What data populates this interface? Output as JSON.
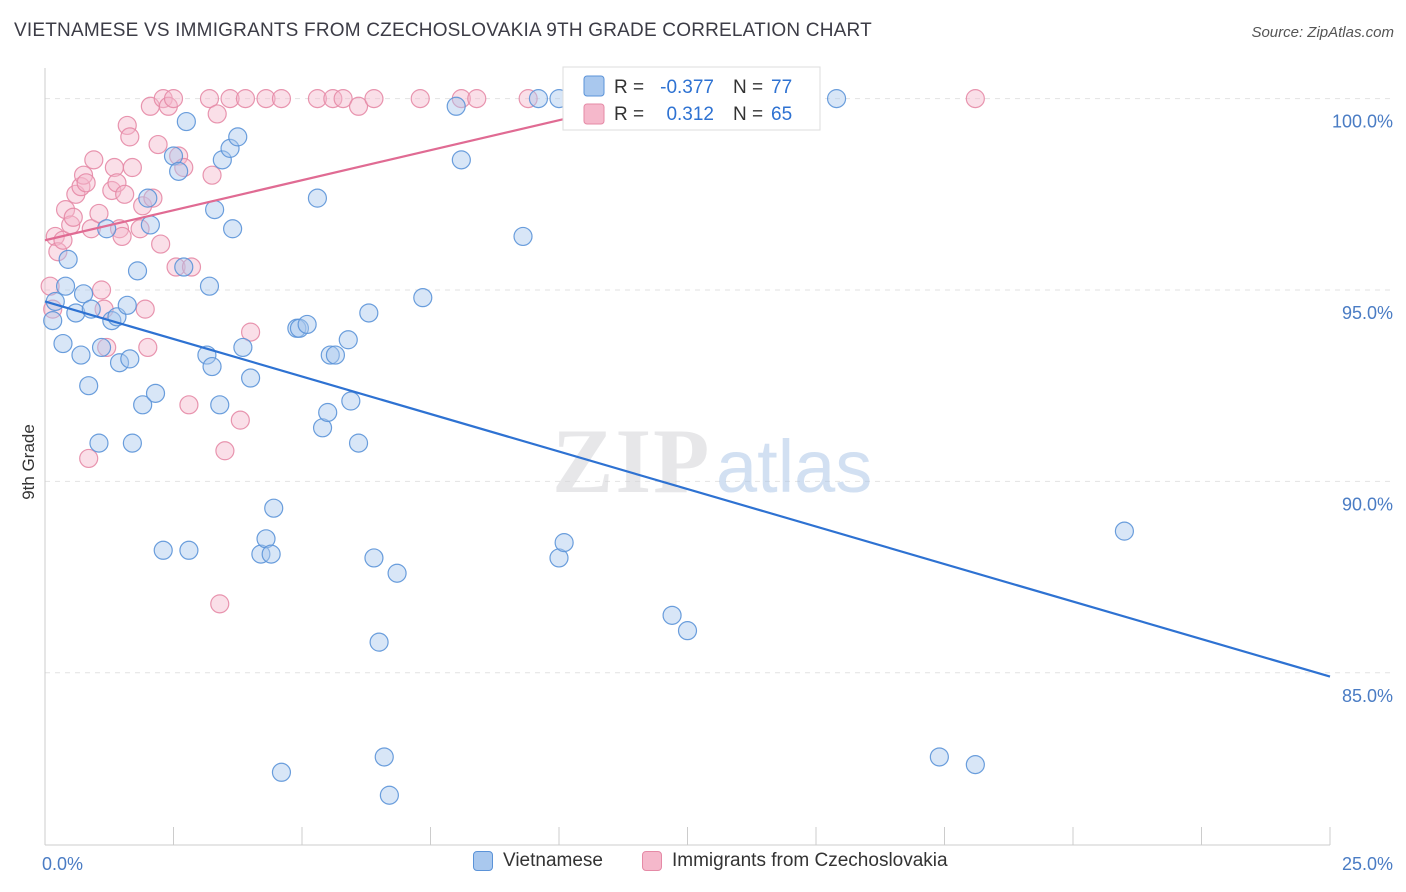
{
  "header": {
    "title": "VIETNAMESE VS IMMIGRANTS FROM CZECHOSLOVAKIA 9TH GRADE CORRELATION CHART",
    "source": "Source: ZipAtlas.com"
  },
  "watermark": {
    "zip": "ZIP",
    "atlas": "atlas"
  },
  "colors": {
    "blue_fill": "#a9c8ee",
    "blue_stroke": "#5b93d8",
    "blue_line": "#2e72d2",
    "pink_fill": "#f5b8cb",
    "pink_stroke": "#e58aa6",
    "pink_line": "#e06b93",
    "tick_label": "#4a7cc4",
    "grid": "#e2e2e2"
  },
  "legend": {
    "rows": [
      {
        "r_label": "R =",
        "r_value": "-0.377",
        "n_label": "N =",
        "n_value": "77"
      },
      {
        "r_label": "R =",
        "r_value": "0.312",
        "n_label": "N =",
        "n_value": "65"
      }
    ]
  },
  "bottom_legend": {
    "blue": "Vietnamese",
    "pink": "Immigrants from Czechoslovakia"
  },
  "chart_data": {
    "type": "scatter",
    "title": "VIETNAMESE VS IMMIGRANTS FROM CZECHOSLOVAKIA 9TH GRADE CORRELATION CHART",
    "xlabel": "",
    "ylabel": "9th Grade",
    "xlim": [
      0,
      25
    ],
    "ylim": [
      80.5,
      100.8
    ],
    "x_tick_labels": [
      "0.0%",
      "25.0%"
    ],
    "y_ticks": [
      85,
      90,
      95,
      100
    ],
    "y_tick_labels": [
      "85.0%",
      "90.0%",
      "95.0%",
      "100.0%"
    ],
    "grid": true,
    "legend_position": "top-center",
    "series": [
      {
        "name": "Vietnamese",
        "r": -0.377,
        "n": 77,
        "trend": {
          "x": [
            0,
            25
          ],
          "y": [
            94.7,
            84.9
          ]
        },
        "points": [
          [
            0.15,
            94.2
          ],
          [
            0.35,
            93.6
          ],
          [
            0.4,
            95.1
          ],
          [
            0.45,
            95.8
          ],
          [
            0.6,
            94.4
          ],
          [
            0.7,
            93.3
          ],
          [
            0.75,
            94.9
          ],
          [
            0.85,
            92.5
          ],
          [
            0.9,
            94.5
          ],
          [
            1.05,
            91.0
          ],
          [
            1.1,
            93.5
          ],
          [
            1.2,
            96.6
          ],
          [
            1.3,
            94.2
          ],
          [
            1.4,
            94.3
          ],
          [
            1.45,
            93.1
          ],
          [
            1.6,
            94.6
          ],
          [
            1.65,
            93.2
          ],
          [
            1.7,
            91.0
          ],
          [
            1.8,
            95.5
          ],
          [
            1.9,
            92.0
          ],
          [
            2.0,
            97.4
          ],
          [
            2.05,
            96.7
          ],
          [
            2.15,
            92.3
          ],
          [
            2.3,
            88.2
          ],
          [
            2.5,
            98.5
          ],
          [
            2.6,
            98.1
          ],
          [
            2.7,
            95.6
          ],
          [
            2.75,
            99.4
          ],
          [
            2.8,
            88.2
          ],
          [
            3.15,
            93.3
          ],
          [
            3.2,
            95.1
          ],
          [
            3.25,
            93.0
          ],
          [
            3.3,
            97.1
          ],
          [
            3.4,
            92.0
          ],
          [
            3.45,
            98.4
          ],
          [
            3.6,
            98.7
          ],
          [
            3.65,
            96.6
          ],
          [
            3.75,
            99.0
          ],
          [
            3.85,
            93.5
          ],
          [
            4.0,
            92.7
          ],
          [
            4.2,
            88.1
          ],
          [
            4.3,
            88.5
          ],
          [
            4.4,
            88.1
          ],
          [
            4.45,
            89.3
          ],
          [
            4.6,
            82.4
          ],
          [
            4.9,
            94.0
          ],
          [
            4.95,
            94.0
          ],
          [
            5.1,
            94.1
          ],
          [
            5.3,
            97.4
          ],
          [
            5.4,
            91.4
          ],
          [
            5.5,
            91.8
          ],
          [
            5.55,
            93.3
          ],
          [
            5.65,
            93.3
          ],
          [
            5.9,
            93.7
          ],
          [
            5.95,
            92.1
          ],
          [
            6.1,
            91.0
          ],
          [
            6.3,
            94.4
          ],
          [
            6.4,
            88.0
          ],
          [
            6.5,
            85.8
          ],
          [
            6.6,
            82.8
          ],
          [
            6.7,
            81.8
          ],
          [
            6.85,
            87.6
          ],
          [
            7.35,
            94.8
          ],
          [
            8.0,
            99.8
          ],
          [
            8.1,
            98.4
          ],
          [
            9.3,
            96.4
          ],
          [
            9.6,
            100.0
          ],
          [
            10.0,
            100.0
          ],
          [
            10.0,
            88.0
          ],
          [
            10.1,
            88.4
          ],
          [
            12.2,
            86.5
          ],
          [
            12.5,
            86.1
          ],
          [
            15.4,
            100.0
          ],
          [
            17.4,
            82.8
          ],
          [
            18.1,
            82.6
          ],
          [
            21.0,
            88.7
          ],
          [
            0.2,
            94.7
          ]
        ]
      },
      {
        "name": "Immigrants from Czechoslovakia",
        "r": 0.312,
        "n": 65,
        "trend": {
          "x": [
            0,
            11.8
          ],
          "y": [
            96.3,
            100.0
          ]
        },
        "points": [
          [
            0.1,
            95.1
          ],
          [
            0.15,
            94.5
          ],
          [
            0.2,
            96.4
          ],
          [
            0.25,
            96.0
          ],
          [
            0.35,
            96.3
          ],
          [
            0.4,
            97.1
          ],
          [
            0.5,
            96.7
          ],
          [
            0.55,
            96.9
          ],
          [
            0.6,
            97.5
          ],
          [
            0.7,
            97.7
          ],
          [
            0.75,
            98.0
          ],
          [
            0.8,
            97.8
          ],
          [
            0.85,
            90.6
          ],
          [
            0.9,
            96.6
          ],
          [
            0.95,
            98.4
          ],
          [
            1.05,
            97.0
          ],
          [
            1.1,
            95.0
          ],
          [
            1.15,
            94.5
          ],
          [
            1.2,
            93.5
          ],
          [
            1.3,
            97.6
          ],
          [
            1.35,
            98.2
          ],
          [
            1.4,
            97.8
          ],
          [
            1.45,
            96.6
          ],
          [
            1.5,
            96.4
          ],
          [
            1.55,
            97.5
          ],
          [
            1.6,
            99.3
          ],
          [
            1.65,
            99.0
          ],
          [
            1.7,
            98.2
          ],
          [
            1.85,
            96.6
          ],
          [
            1.9,
            97.2
          ],
          [
            1.95,
            94.5
          ],
          [
            2.0,
            93.5
          ],
          [
            2.05,
            99.8
          ],
          [
            2.1,
            97.4
          ],
          [
            2.2,
            98.8
          ],
          [
            2.25,
            96.2
          ],
          [
            2.3,
            100.0
          ],
          [
            2.4,
            99.8
          ],
          [
            2.5,
            100.0
          ],
          [
            2.55,
            95.6
          ],
          [
            2.6,
            98.5
          ],
          [
            2.7,
            98.2
          ],
          [
            2.8,
            92.0
          ],
          [
            2.85,
            95.6
          ],
          [
            3.2,
            100.0
          ],
          [
            3.25,
            98.0
          ],
          [
            3.35,
            99.6
          ],
          [
            3.4,
            86.8
          ],
          [
            3.5,
            90.8
          ],
          [
            3.6,
            100.0
          ],
          [
            3.8,
            91.6
          ],
          [
            3.9,
            100.0
          ],
          [
            4.0,
            93.9
          ],
          [
            4.3,
            100.0
          ],
          [
            4.6,
            100.0
          ],
          [
            5.3,
            100.0
          ],
          [
            5.6,
            100.0
          ],
          [
            5.8,
            100.0
          ],
          [
            6.1,
            99.8
          ],
          [
            6.4,
            100.0
          ],
          [
            7.3,
            100.0
          ],
          [
            8.1,
            100.0
          ],
          [
            8.4,
            100.0
          ],
          [
            9.4,
            100.0
          ],
          [
            18.1,
            100.0
          ]
        ]
      }
    ]
  }
}
